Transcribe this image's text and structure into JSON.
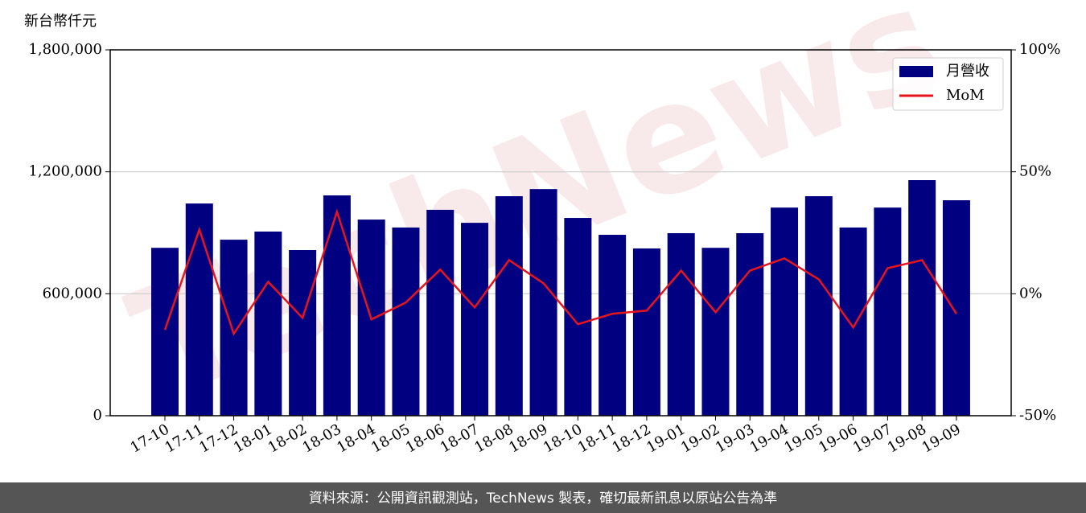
{
  "chart_data": {
    "type": "bar_line",
    "y_axis_label": "新台幣仟元",
    "watermark": "TechNews",
    "footer": "資料來源：公開資訊觀測站，TechNews 製表，確切最新訊息以原站公告為準",
    "categories": [
      "17-10",
      "17-11",
      "17-12",
      "18-01",
      "18-02",
      "18-03",
      "18-04",
      "18-05",
      "18-06",
      "18-07",
      "18-08",
      "18-09",
      "18-10",
      "18-11",
      "18-12",
      "19-01",
      "19-02",
      "19-03",
      "19-04",
      "19-05",
      "19-06",
      "19-07",
      "19-08",
      "19-09"
    ],
    "series": [
      {
        "name": "月營收",
        "color": "#000080",
        "kind": "bar",
        "values": [
          826000,
          1044000,
          866000,
          906000,
          815000,
          1084000,
          965000,
          926000,
          1013000,
          949000,
          1080000,
          1115000,
          973000,
          890000,
          823000,
          898000,
          826000,
          898000,
          1024000,
          1080000,
          926000,
          1024000,
          1159000,
          1060000
        ]
      },
      {
        "name": "MoM",
        "color": "#e8141c",
        "kind": "line",
        "axis": "y2",
        "values": [
          -14.8,
          26.3,
          -16.4,
          4.9,
          -9.9,
          33.6,
          -10.5,
          -3.6,
          9.9,
          -5.6,
          13.8,
          4.3,
          -12.5,
          -8.2,
          -6.9,
          9.5,
          -7.6,
          9.5,
          14.5,
          5.9,
          -13.8,
          10.5,
          13.8,
          -8.2
        ]
      }
    ],
    "ylim": [
      0,
      1800000
    ],
    "yticks": [
      0,
      {
        "value": 600000,
        "label": "600,000"
      },
      {
        "value": 1200000,
        "label": "1,200,000"
      },
      {
        "value": 1800000,
        "label": "1,800,000"
      }
    ],
    "y2lim": [
      -50,
      100
    ],
    "y2ticks": [
      {
        "value": -50,
        "label": "-50%"
      },
      {
        "value": 0,
        "label": "0%"
      },
      {
        "value": 50,
        "label": "50%"
      },
      {
        "value": 100,
        "label": "100%"
      }
    ],
    "grid": true,
    "legend": "upper right"
  }
}
